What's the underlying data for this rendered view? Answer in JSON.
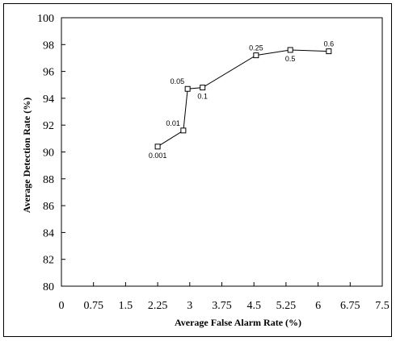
{
  "chart_data": {
    "type": "line",
    "xlabel": "Average False Alarm Rate (%)",
    "ylabel": "Average Detection  Rate (%)",
    "xlim": [
      0,
      7.5
    ],
    "ylim": [
      80,
      100
    ],
    "x_ticks": [
      "0",
      "0.75",
      "1.5",
      "2.25",
      "3",
      "3.75",
      "4.5",
      "5.25",
      "6",
      "6.75",
      "7.5"
    ],
    "y_ticks": [
      "80",
      "82",
      "84",
      "86",
      "88",
      "90",
      "92",
      "94",
      "96",
      "98",
      "100"
    ],
    "marker": "square",
    "grid": false,
    "series": [
      {
        "points": [
          {
            "x": 2.25,
            "y": 90.4,
            "label": "0.001",
            "label_pos": "below"
          },
          {
            "x": 2.85,
            "y": 91.6,
            "label": "0.01",
            "label_pos": "above-left"
          },
          {
            "x": 2.95,
            "y": 94.7,
            "label": "0.05",
            "label_pos": "above-left"
          },
          {
            "x": 3.3,
            "y": 94.8,
            "label": "0.1",
            "label_pos": "below"
          },
          {
            "x": 4.55,
            "y": 97.2,
            "label": "0.25",
            "label_pos": "above"
          },
          {
            "x": 5.35,
            "y": 97.6,
            "label": "0.5",
            "label_pos": "below"
          },
          {
            "x": 6.25,
            "y": 97.5,
            "label": "0.6",
            "label_pos": "above"
          }
        ]
      }
    ]
  }
}
